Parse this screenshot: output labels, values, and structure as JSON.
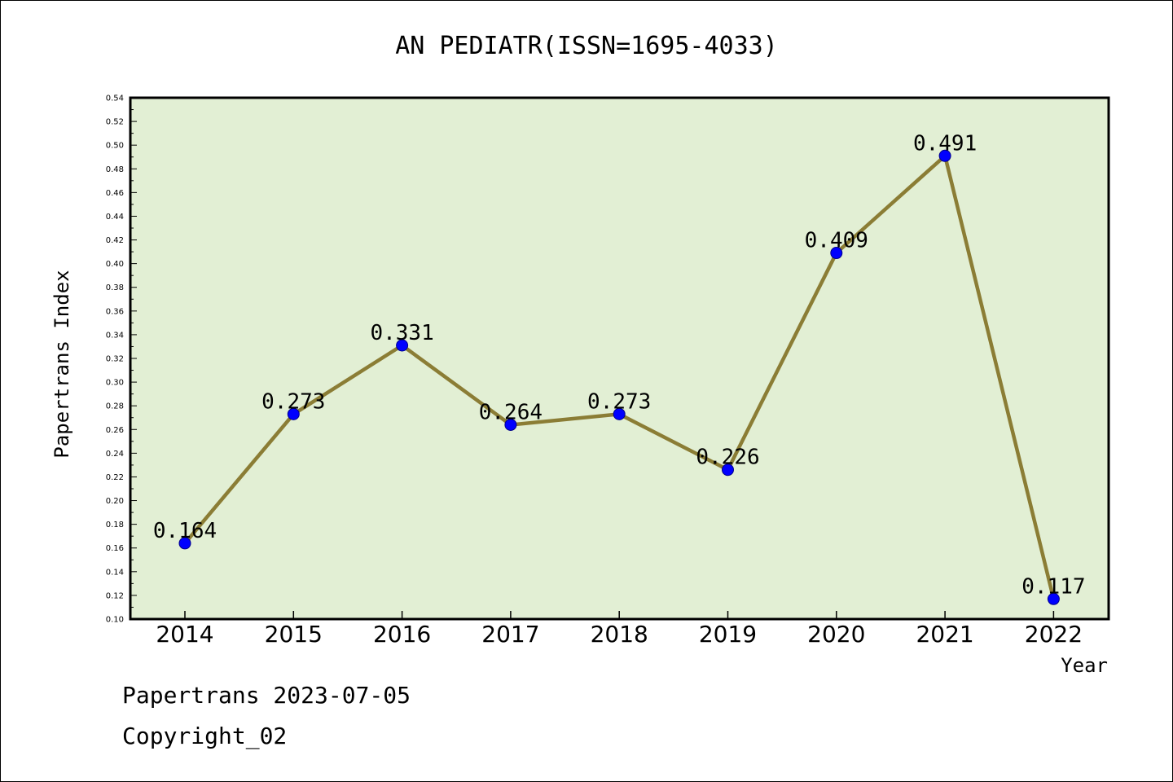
{
  "chart_data": {
    "type": "line",
    "title": "AN PEDIATR(ISSN=1695-4033)",
    "xlabel": "Year",
    "ylabel": "Papertrans Index",
    "categories": [
      "2014",
      "2015",
      "2016",
      "2017",
      "2018",
      "2019",
      "2020",
      "2021",
      "2022"
    ],
    "values": [
      0.164,
      0.273,
      0.331,
      0.264,
      0.273,
      0.226,
      0.409,
      0.491,
      0.117
    ],
    "data_labels": [
      "0.164",
      "0.273",
      "0.331",
      "0.264",
      "0.273",
      "0.226",
      "0.409",
      "0.491",
      "0.117"
    ],
    "ylim": [
      0.1,
      0.54
    ],
    "yticks": [
      "0.10",
      "0.12",
      "0.14",
      "0.16",
      "0.18",
      "0.20",
      "0.22",
      "0.24",
      "0.26",
      "0.28",
      "0.30",
      "0.32",
      "0.34",
      "0.36",
      "0.38",
      "0.40",
      "0.42",
      "0.44",
      "0.46",
      "0.48",
      "0.50",
      "0.52",
      "0.54"
    ],
    "grid": false,
    "colors": {
      "plot_bg": "#e2efd4",
      "line": "#8b7d35",
      "marker": "#0000ff"
    }
  },
  "footer": {
    "line1": "Papertrans 2023-07-05",
    "line2": "Copyright_02"
  }
}
